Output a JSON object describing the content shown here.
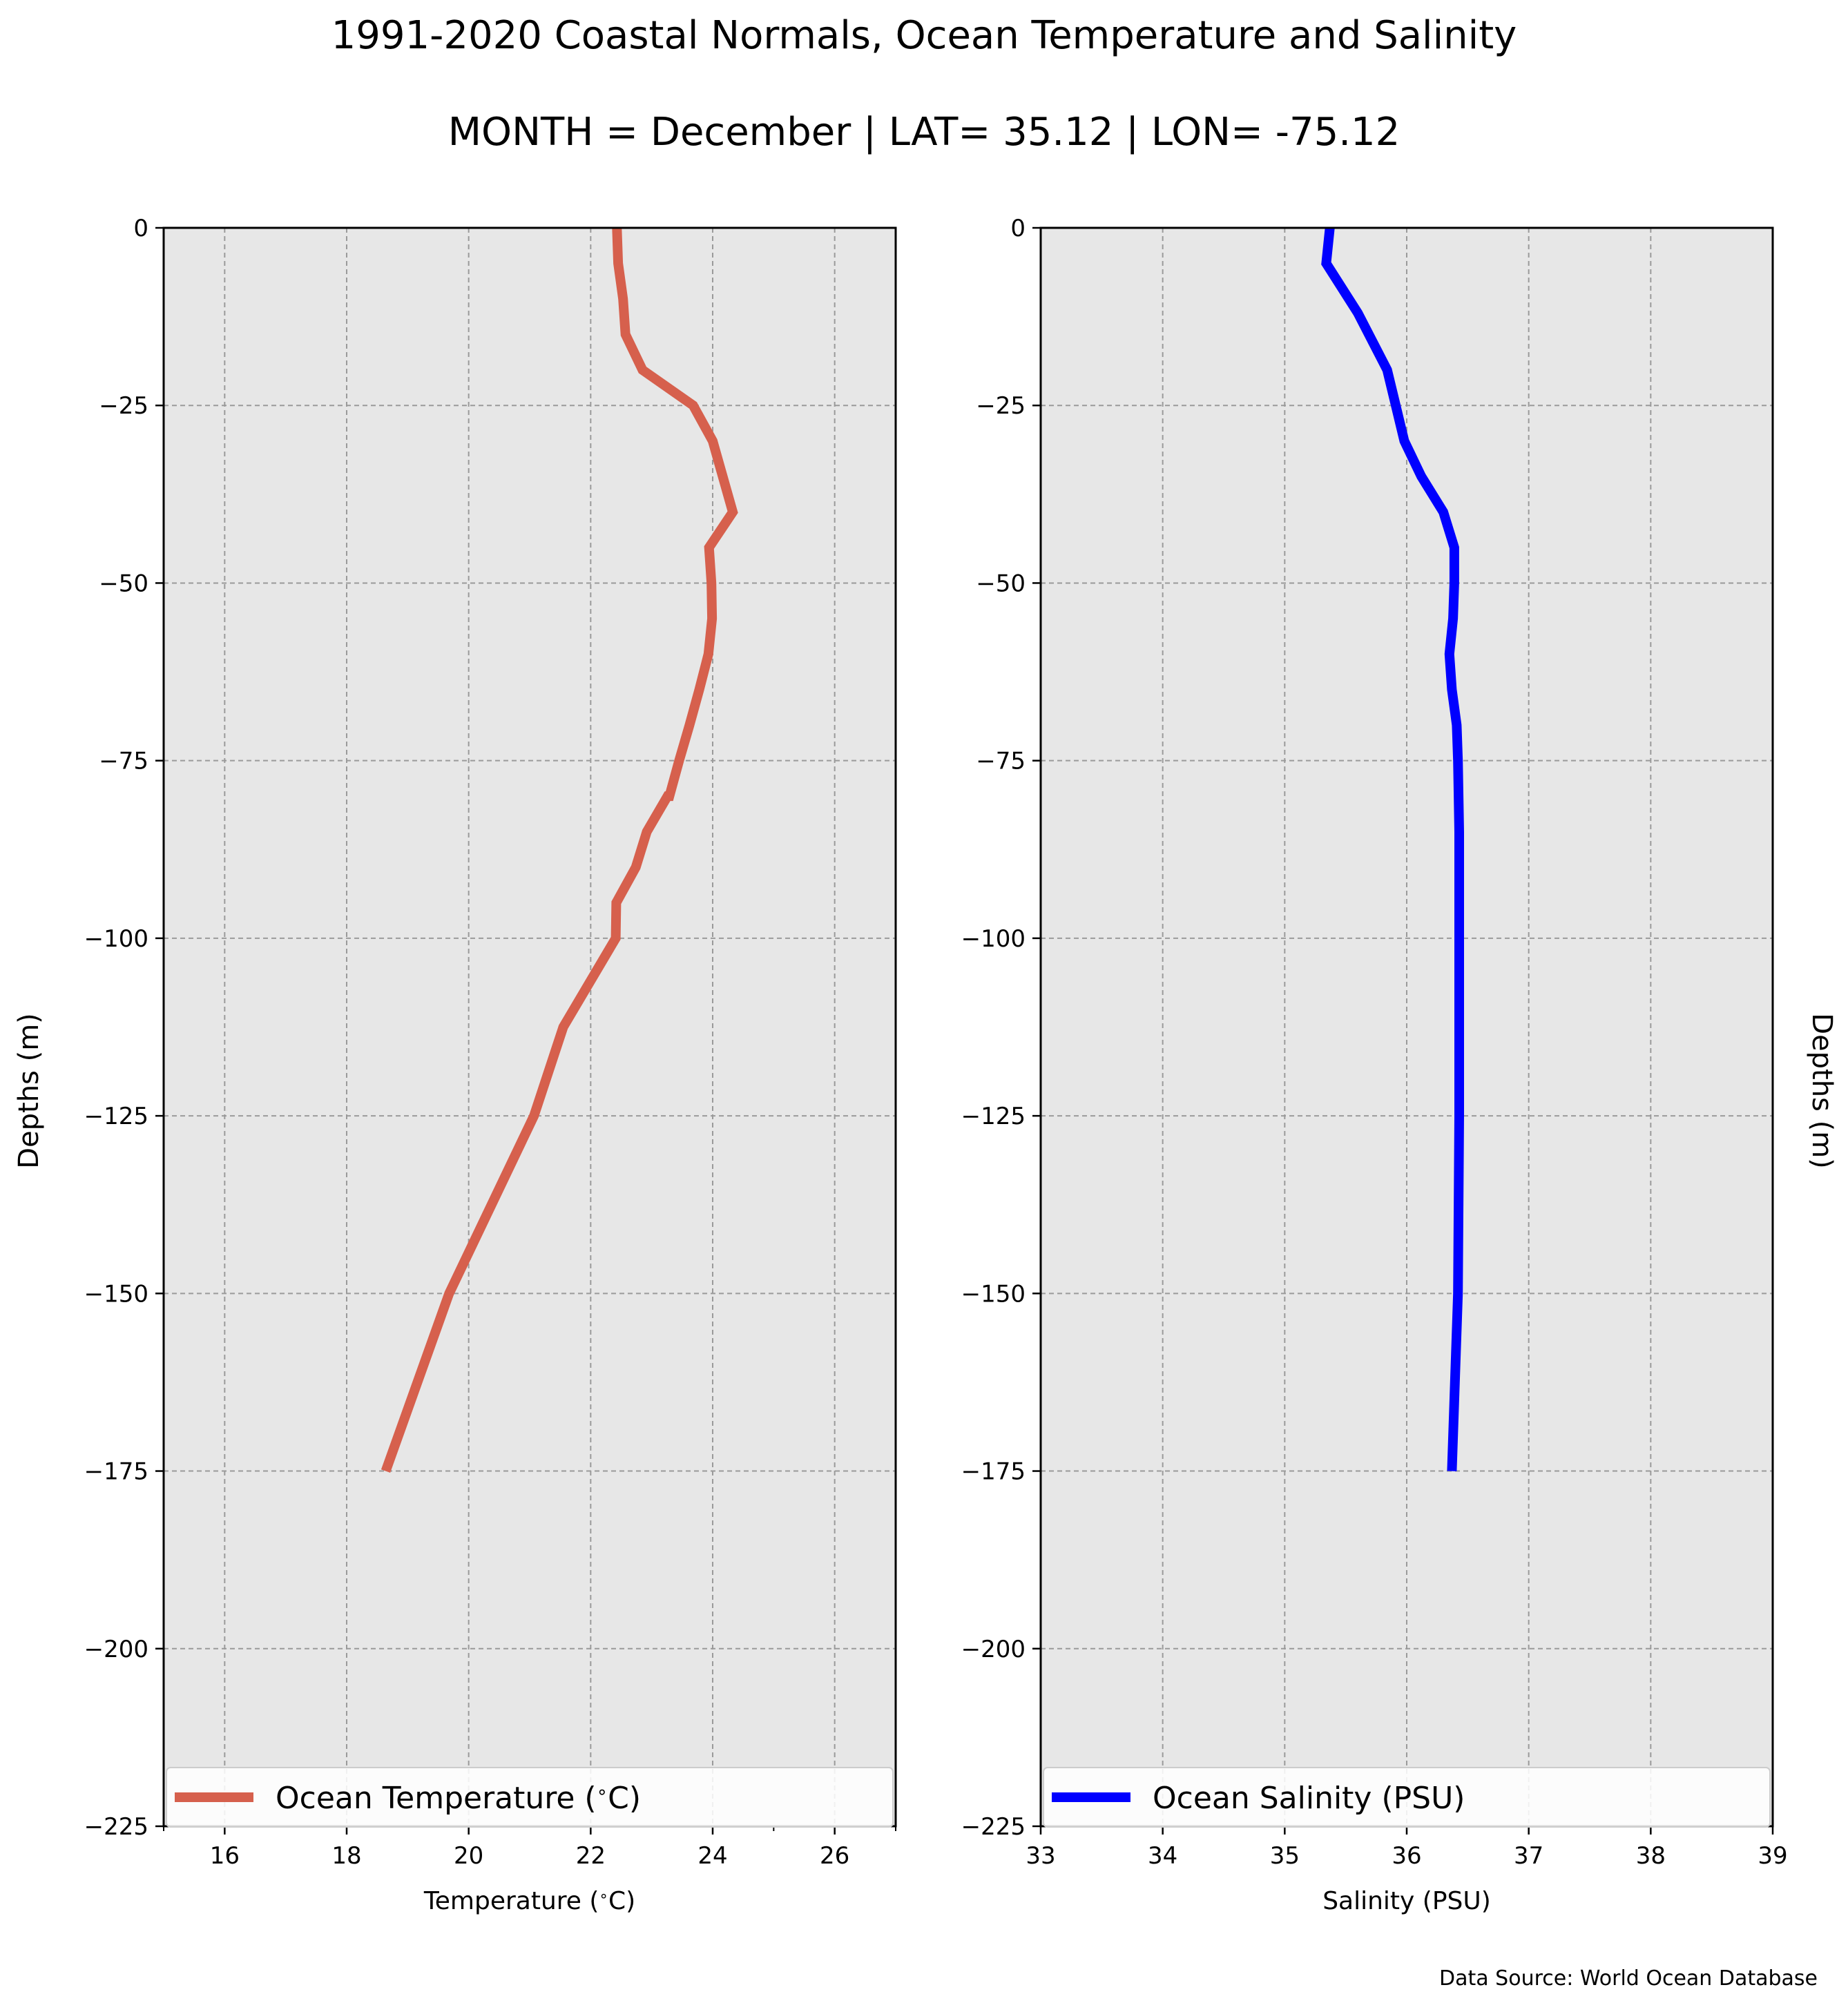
{
  "figure": {
    "title": "1991-2020 Coastal Normals, Ocean Temperature and Salinity",
    "subtitle": "MONTH = December | LAT= 35.12 | LON= -75.12",
    "source": "Data Source: World Ocean Database"
  },
  "chart_data": [
    {
      "type": "line",
      "xlabel": "Temperature ($^\\circ$C)",
      "ylabel": "Depths (m)",
      "xlim": [
        15,
        27
      ],
      "ylim": [
        -225,
        0
      ],
      "xticks": [
        16,
        18,
        20,
        22,
        24,
        26
      ],
      "yticks": [
        0,
        -25,
        -50,
        -75,
        -100,
        -125,
        -150,
        -175,
        -200,
        -225
      ],
      "grid": true,
      "legend_position": "lower-center",
      "series": [
        {
          "name": "Ocean Temperature ($^\\circ$C)",
          "color": "#d6604d",
          "x": [
            22.43,
            22.45,
            22.53,
            22.57,
            22.85,
            23.68,
            24.0,
            24.33,
            23.94,
            23.98,
            23.99,
            23.93,
            23.78,
            23.62,
            23.45,
            23.29,
            23.26,
            22.92,
            22.74,
            22.42,
            22.41,
            21.55,
            21.07,
            19.68,
            18.64
          ],
          "y": [
            0,
            -5,
            -10,
            -15,
            -20,
            -25,
            -30,
            -40,
            -45,
            -50,
            -55,
            -60,
            -65,
            -70,
            -75,
            -80,
            -80,
            -85,
            -90,
            -95,
            -100,
            -112.5,
            -125,
            -150,
            -175
          ]
        }
      ]
    },
    {
      "type": "line",
      "xlabel": "Salinity (PSU)",
      "ylabel": "Depths (m)",
      "xlim": [
        33,
        39
      ],
      "ylim": [
        -225,
        0
      ],
      "xticks": [
        33,
        34,
        35,
        36,
        37,
        38,
        39
      ],
      "yticks": [
        0,
        -25,
        -50,
        -75,
        -100,
        -125,
        -150,
        -175,
        -200,
        -225
      ],
      "grid": true,
      "legend_position": "lower-center",
      "series": [
        {
          "name": "Ocean Salinity (PSU)",
          "color": "#0000ff",
          "x": [
            35.37,
            35.34,
            35.6,
            35.84,
            35.91,
            35.98,
            36.12,
            36.3,
            36.39,
            36.39,
            36.38,
            36.35,
            36.37,
            36.41,
            36.42,
            36.43,
            36.43,
            36.43,
            36.42,
            36.37
          ],
          "y": [
            0,
            -5,
            -12,
            -20,
            -25,
            -30,
            -35,
            -40,
            -45,
            -50,
            -55,
            -60,
            -65,
            -70,
            -75,
            -85,
            -95,
            -125,
            -150,
            -175
          ]
        }
      ]
    }
  ]
}
